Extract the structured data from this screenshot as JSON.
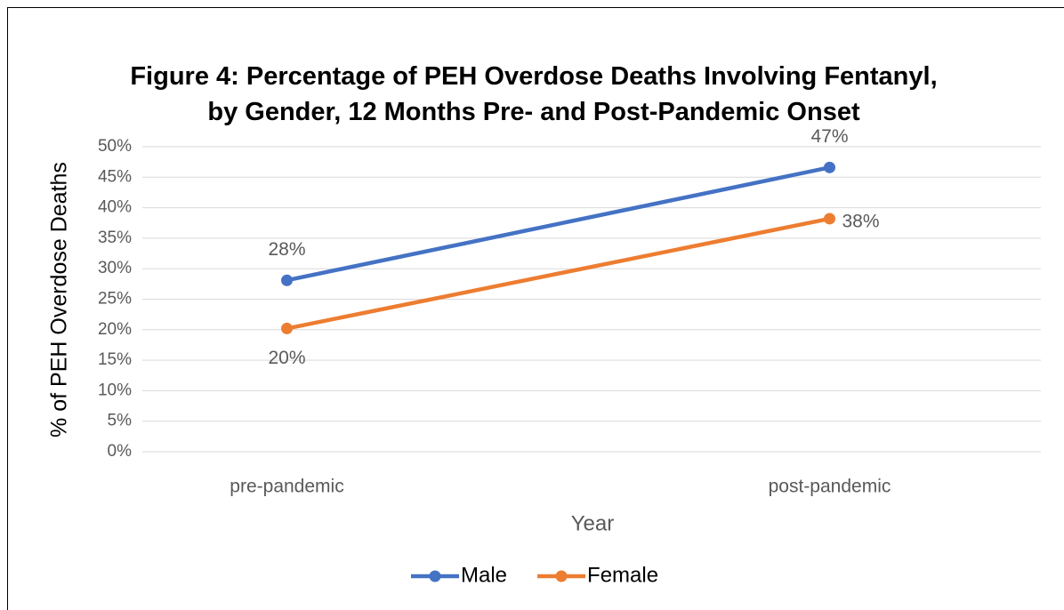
{
  "chart_data": {
    "type": "line",
    "title": "Figure 4: Percentage of PEH Overdose Deaths Involving Fentanyl, by Gender, 12 Months Pre- and Post-Pandemic Onset",
    "x_label": "Year",
    "y_label": "% of PEH Overdose Deaths",
    "categories": [
      "pre-pandemic",
      "post-pandemic"
    ],
    "series": [
      {
        "name": "Male",
        "color": "#4472c4",
        "values": [
          28.1,
          46.6
        ],
        "value_labels": [
          "28%",
          "47%"
        ]
      },
      {
        "name": "Female",
        "color": "#ed7d31",
        "values": [
          20.2,
          38.2
        ],
        "value_labels": [
          "20%",
          "38%"
        ]
      }
    ],
    "ylim": [
      0,
      50
    ],
    "yticks": [
      {
        "value": 0,
        "label": "0%"
      },
      {
        "value": 5,
        "label": "5%"
      },
      {
        "value": 10,
        "label": "10%"
      },
      {
        "value": 15,
        "label": "15%"
      },
      {
        "value": 20,
        "label": "20%"
      },
      {
        "value": 25,
        "label": "25%"
      },
      {
        "value": 30,
        "label": "30%"
      },
      {
        "value": 35,
        "label": "35%"
      },
      {
        "value": 40,
        "label": "40%"
      },
      {
        "value": 45,
        "label": "45%"
      },
      {
        "value": 50,
        "label": "50%"
      }
    ],
    "grid": true,
    "legend": "bottom"
  }
}
